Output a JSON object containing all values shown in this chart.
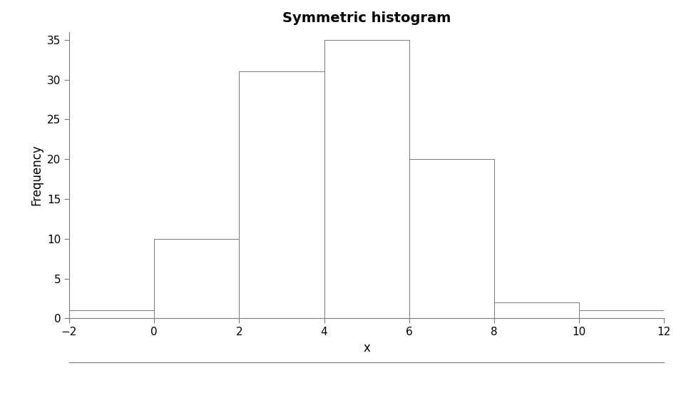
{
  "title": "Symmetric histogram",
  "xlabel": "x",
  "ylabel": "Frequency",
  "bin_edges": [
    -2,
    0,
    2,
    4,
    6,
    8,
    10,
    12
  ],
  "frequencies": [
    1,
    10,
    31,
    35,
    20,
    2,
    1
  ],
  "bar_facecolor": "#ffffff",
  "bar_edgecolor": "#7a7a7a",
  "xlim": [
    -2,
    12
  ],
  "ylim": [
    0,
    36
  ],
  "xticks": [
    -2,
    0,
    2,
    4,
    6,
    8,
    10,
    12
  ],
  "yticks": [
    0,
    5,
    10,
    15,
    20,
    25,
    30,
    35
  ],
  "title_fontsize": 14,
  "axis_label_fontsize": 12,
  "tick_fontsize": 11,
  "background_color": "#ffffff",
  "bar_linewidth": 0.7,
  "spine_linewidth": 0.8,
  "spine_color": "#7a7a7a"
}
